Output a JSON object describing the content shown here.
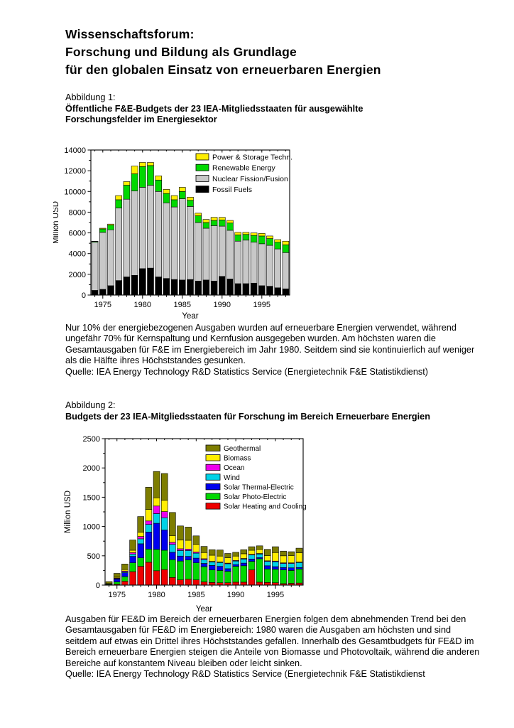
{
  "title": {
    "lines": [
      "Wissenschaftsforum:",
      "Forschung und Bildung als Grundlage",
      "für den globalen Einsatz von erneuerbaren Energien"
    ]
  },
  "figure1": {
    "label": "Abbildung 1:",
    "caption_lines": [
      "Öffentliche F&E-Budgets der 23 IEA-Mitgliedsstaaten für ausgewählte",
      "Forschungsfelder im Energiesektor"
    ],
    "body": "Nur 10% der energiebezogenen Ausgaben wurden auf erneuerbare Energien verwendet, während ungefähr 70% für Kernspaltung und Kernfusion ausgegeben wurden. Am höchsten waren die Gesamtausgaben für F&E im Energiebereich im Jahr 1980. Seitdem sind sie kontinuierlich auf weniger als die Hälfte ihres Höchststandes gesunken.",
    "source": "Quelle: IEA Energy Technology R&D Statistics Service (Energietechnik F&E Statistikdienst)"
  },
  "figure2": {
    "label": "Abbildung 2:",
    "caption_lines": [
      "Budgets der 23 IEA-Mitgliedsstaaten für Forschung im Bereich Erneuerbare Energien"
    ],
    "body": "Ausgaben für FE&D im Bereich der erneuerbaren Energien folgen dem abnehmenden Trend bei den Gesamtausgaben für FE&D im Energiebereich: 1980 waren die Ausgaben am höchsten und sind seitdem auf etwas ein Drittel ihres Höchststandes gefallen. Innerhalb des Gesamtbudgets für FE&D im Bereich erneuerbare Energien steigen die Anteile von Biomasse und Photovoltaik, während die anderen Bereiche auf konstantem Niveau bleiben oder leicht sinken.",
    "source": "Quelle: IEA Energy Technology R&D Statistics Service (Energietechnik F&E Statistikdienst"
  },
  "chart_data": [
    {
      "type": "bar",
      "stacked": true,
      "title": "",
      "xlabel": "Year",
      "ylabel": "Million USD",
      "ylim": [
        0,
        14000
      ],
      "ytick_major": 2000,
      "ytick_minor": 1000,
      "grid": false,
      "legend_position": "top-right-inside",
      "years": [
        1974,
        1975,
        1976,
        1977,
        1978,
        1979,
        1980,
        1981,
        1982,
        1983,
        1984,
        1985,
        1986,
        1987,
        1988,
        1989,
        1990,
        1991,
        1992,
        1993,
        1994,
        1995,
        1996,
        1997,
        1998
      ],
      "xtick_labels": [
        1975,
        1980,
        1985,
        1990,
        1995
      ],
      "series": [
        {
          "name": "Fossil Fuels",
          "color": "#000000",
          "values": [
            450,
            550,
            900,
            1400,
            1750,
            1900,
            2550,
            2600,
            1750,
            1600,
            1500,
            1450,
            1500,
            1350,
            1450,
            1350,
            1800,
            1550,
            1100,
            1100,
            1150,
            900,
            850,
            700,
            600
          ]
        },
        {
          "name": "Nuclear Fission/Fusion",
          "color": "#c8c8c8",
          "values": [
            4650,
            5500,
            5400,
            7000,
            7500,
            8150,
            7850,
            8000,
            8250,
            7300,
            7000,
            7850,
            7050,
            5650,
            5000,
            5350,
            4850,
            4700,
            4100,
            4200,
            3950,
            4050,
            3950,
            3750,
            3500
          ]
        },
        {
          "name": "Renewable Energy",
          "color": "#00d800",
          "values": [
            80,
            330,
            450,
            800,
            1350,
            1650,
            2000,
            1900,
            1100,
            900,
            700,
            700,
            600,
            650,
            550,
            500,
            600,
            700,
            600,
            550,
            650,
            750,
            650,
            650,
            750
          ]
        },
        {
          "name": "Power & Storage Techn.",
          "color": "#ffee00",
          "values": [
            20,
            70,
            100,
            400,
            350,
            750,
            400,
            300,
            400,
            400,
            400,
            400,
            300,
            250,
            300,
            300,
            250,
            250,
            250,
            200,
            250,
            250,
            250,
            250,
            350
          ]
        }
      ]
    },
    {
      "type": "bar",
      "stacked": true,
      "title": "",
      "xlabel": "Year",
      "ylabel": "Million USD",
      "ylim": [
        0,
        2500
      ],
      "ytick_major": 500,
      "ytick_minor": 250,
      "grid": false,
      "legend_position": "top-right-inside",
      "years": [
        1974,
        1975,
        1976,
        1977,
        1978,
        1979,
        1980,
        1981,
        1982,
        1983,
        1984,
        1985,
        1986,
        1987,
        1988,
        1989,
        1990,
        1991,
        1992,
        1993,
        1994,
        1995,
        1996,
        1997,
        1998
      ],
      "xtick_labels": [
        1975,
        1980,
        1985,
        1990,
        1995
      ],
      "series": [
        {
          "name": "Solar Heating and Cooling",
          "color": "#ee0000",
          "values": [
            5,
            15,
            65,
            230,
            320,
            390,
            245,
            265,
            130,
            90,
            100,
            90,
            55,
            45,
            40,
            40,
            50,
            50,
            260,
            50,
            45,
            40,
            25,
            30,
            35
          ]
        },
        {
          "name": "Solar Photo-Electric",
          "color": "#00d800",
          "values": [
            10,
            40,
            80,
            150,
            145,
            225,
            365,
            330,
            305,
            320,
            330,
            290,
            260,
            215,
            210,
            195,
            270,
            280,
            145,
            400,
            230,
            230,
            235,
            220,
            240
          ]
        },
        {
          "name": "Solar Thermal-Electric",
          "color": "#0000ee",
          "values": [
            5,
            45,
            65,
            110,
            240,
            290,
            445,
            345,
            125,
            85,
            60,
            80,
            55,
            75,
            70,
            45,
            30,
            45,
            40,
            20,
            55,
            45,
            40,
            45,
            25
          ]
        },
        {
          "name": "Wind",
          "color": "#00d2e6",
          "values": [
            0,
            10,
            15,
            40,
            85,
            130,
            165,
            210,
            135,
            95,
            100,
            85,
            65,
            60,
            65,
            85,
            60,
            70,
            70,
            60,
            75,
            85,
            70,
            75,
            85
          ]
        },
        {
          "name": "Ocean",
          "color": "#ee00ee",
          "values": [
            0,
            10,
            15,
            25,
            40,
            60,
            130,
            105,
            35,
            30,
            25,
            20,
            15,
            10,
            10,
            10,
            10,
            10,
            10,
            10,
            10,
            10,
            10,
            10,
            10
          ]
        },
        {
          "name": "Biomass",
          "color": "#ffee00",
          "values": [
            5,
            15,
            25,
            40,
            75,
            195,
            140,
            195,
            115,
            150,
            150,
            130,
            105,
            105,
            100,
            90,
            75,
            80,
            70,
            70,
            90,
            145,
            120,
            125,
            155
          ]
        },
        {
          "name": "Geothermal",
          "color": "#7d7d00",
          "values": [
            35,
            65,
            95,
            175,
            265,
            380,
            450,
            455,
            395,
            240,
            225,
            145,
            105,
            95,
            105,
            75,
            65,
            70,
            60,
            60,
            105,
            100,
            80,
            65,
            80
          ]
        }
      ]
    }
  ]
}
